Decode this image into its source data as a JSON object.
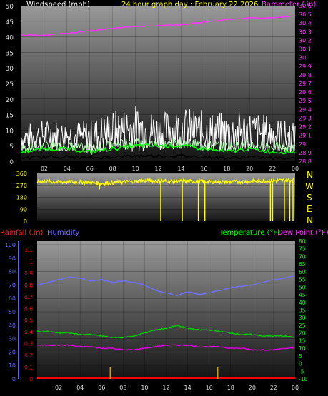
{
  "colors": {
    "bg": "#000000",
    "wind": "#ffffff",
    "gust_avg": "#00ff00",
    "wind_avg": "#000000",
    "light_green": "#b8ffb8",
    "pressure": "#ff33ff",
    "direction": "#ffff00",
    "humidity": "#7070ff",
    "temperature": "#00cc00",
    "dewpoint": "#dd00dd",
    "rainfall": "#ff0000",
    "rain_ticks": "#ff0000",
    "hum_ticks": "#6060ff",
    "temp_ticks": "#00ff00",
    "pressure_ticks": "#ff33ff",
    "dir_ticks": "#ffff00",
    "rain_marks": "#c8a000",
    "x_ticks": "#d8d8d8"
  },
  "header": {
    "wind_title": "Windspeed (mph)",
    "graph_title": "24 hour graph day : February 22 2026",
    "baro_title": "Barometer (.in)"
  },
  "compass": [
    "N",
    "W",
    "S",
    "E",
    "N"
  ],
  "bottom_labels": {
    "rainfall": "Rainfall (.in)",
    "humidity": "Humidity",
    "temperature": "Temperature (°F)",
    "dewpoint": "Dew Point (°F)"
  },
  "chart_data": [
    {
      "type": "line",
      "title": "24 hour graph day : February 22 2026",
      "ylabel": "Windspeed (mph)",
      "y2label": "Barometer (.in)",
      "x_ticks": [
        "02",
        "04",
        "06",
        "08",
        "10",
        "12",
        "14",
        "16",
        "18",
        "20",
        "22",
        "00"
      ],
      "ylim": [
        0,
        50
      ],
      "yticks": [
        "0",
        "5",
        "10",
        "15",
        "20",
        "25",
        "30",
        "35",
        "40",
        "45",
        "50"
      ],
      "y2lim": [
        28.8,
        30.6
      ],
      "y2ticks": [
        "28.8",
        "28.9",
        "29",
        "29.1",
        "29.2",
        "29.3",
        "29.4",
        "29.5",
        "29.6",
        "29.7",
        "29.8",
        "29.9",
        "30",
        "30.1",
        "30.2",
        "30.3",
        "30.4",
        "30.5",
        "30.6"
      ],
      "series": [
        {
          "name": "Windspeed",
          "x": [
            0,
            2,
            4,
            6,
            8,
            10,
            12,
            14,
            16,
            18,
            20,
            22,
            24
          ],
          "y": [
            7,
            8,
            8,
            7,
            9,
            10,
            9,
            10,
            9,
            8,
            9,
            8,
            7
          ],
          "peak": [
            12,
            14,
            13,
            14,
            17,
            19,
            16,
            18,
            17,
            16,
            17,
            15,
            13
          ]
        },
        {
          "name": "Average windspeed",
          "x": [
            0,
            2,
            4,
            6,
            8,
            10,
            12,
            14,
            16,
            18,
            20,
            22,
            24
          ],
          "y": [
            3,
            4,
            4,
            3,
            4,
            5,
            5,
            5,
            4,
            3,
            4,
            3,
            3
          ]
        },
        {
          "name": "Barometer",
          "axis": "right",
          "x": [
            0,
            2,
            4,
            6,
            8,
            10,
            12,
            14,
            16,
            18,
            20,
            22,
            24
          ],
          "y": [
            30.26,
            30.26,
            30.28,
            30.31,
            30.34,
            30.36,
            30.37,
            30.38,
            30.41,
            30.44,
            30.46,
            30.46,
            30.48
          ]
        }
      ]
    },
    {
      "type": "line",
      "ylim": [
        0,
        360
      ],
      "yticks": [
        "0",
        "90",
        "180",
        "270",
        "360"
      ],
      "x_ticks": [
        "02",
        "04",
        "06",
        "08",
        "10",
        "12",
        "14",
        "16",
        "18",
        "20",
        "22",
        "00"
      ],
      "series": [
        {
          "name": "Wind direction",
          "x": [
            0,
            2,
            4,
            6,
            8,
            10,
            12,
            14,
            16,
            18,
            20,
            22,
            24
          ],
          "y": [
            300,
            295,
            296,
            285,
            295,
            305,
            302,
            300,
            298,
            296,
            300,
            305,
            310
          ],
          "dips": [
            [
              5.8,
              240
            ],
            [
              11.5,
              0
            ],
            [
              13.5,
              0
            ],
            [
              15.0,
              0
            ],
            [
              15.6,
              0
            ],
            [
              21.7,
              0
            ],
            [
              21.9,
              0
            ],
            [
              23.0,
              0
            ],
            [
              23.5,
              0
            ],
            [
              23.8,
              0
            ]
          ]
        }
      ]
    },
    {
      "type": "line",
      "x_ticks": [
        "02",
        "04",
        "06",
        "08",
        "10",
        "12",
        "14",
        "16",
        "18",
        "20",
        "22",
        "00"
      ],
      "ylim": [
        0,
        100
      ],
      "yticks": [
        "0",
        "10",
        "20",
        "30",
        "40",
        "50",
        "60",
        "70",
        "80",
        "90",
        "100"
      ],
      "rain_ylim": [
        0,
        1.1
      ],
      "rain_ticks": [
        "0",
        "0.1",
        "0.2",
        "0.3",
        "0.4",
        "0.5",
        "0.6",
        "0.7",
        "0.8",
        "0.9",
        "1",
        "1.1"
      ],
      "temp_ylim": [
        -10,
        80
      ],
      "temp_ticks": [
        "-10",
        "-5",
        "0",
        "5",
        "10",
        "15",
        "20",
        "25",
        "30",
        "35",
        "40",
        "45",
        "50",
        "55",
        "60",
        "65",
        "70",
        "75",
        "80"
      ],
      "series": [
        {
          "name": "Humidity",
          "axis": "humidity",
          "x": [
            0,
            1,
            2,
            3,
            4,
            5,
            6,
            7,
            8,
            9,
            10,
            11,
            12,
            13,
            14,
            15,
            16,
            17,
            18,
            19,
            20,
            21,
            22,
            23,
            24
          ],
          "y": [
            70,
            72,
            74,
            76,
            75,
            73,
            74,
            72,
            73,
            72,
            70,
            66,
            64,
            62,
            65,
            63,
            64,
            66,
            68,
            69,
            70,
            72,
            74,
            75,
            77
          ]
        },
        {
          "name": "Temperature (°F)",
          "axis": "temp",
          "x": [
            0,
            1,
            2,
            3,
            4,
            5,
            6,
            7,
            8,
            9,
            10,
            11,
            12,
            13,
            14,
            15,
            16,
            17,
            18,
            19,
            20,
            21,
            22,
            23,
            24
          ],
          "y": [
            21,
            21,
            20,
            20,
            19,
            19,
            18,
            17,
            17,
            18,
            20,
            22,
            23,
            25,
            23,
            22,
            22,
            21,
            20,
            19,
            19,
            18,
            18,
            18,
            17
          ]
        },
        {
          "name": "Dew Point (°F)",
          "axis": "temp",
          "x": [
            0,
            1,
            2,
            3,
            4,
            5,
            6,
            7,
            8,
            9,
            10,
            11,
            12,
            13,
            14,
            15,
            16,
            17,
            18,
            19,
            20,
            21,
            22,
            23,
            24
          ],
          "y": [
            12,
            12,
            12,
            12,
            11,
            11,
            10,
            10,
            9,
            9,
            10,
            11,
            12,
            12,
            12,
            11,
            11,
            11,
            10,
            10,
            9,
            9,
            9,
            10,
            10
          ]
        },
        {
          "name": "Rainfall (.in)",
          "axis": "rain",
          "x": [
            0,
            24
          ],
          "y": [
            0,
            0
          ],
          "spikes": [
            [
              6.8,
              0.05
            ],
            [
              16.8,
              0.05
            ]
          ]
        }
      ]
    }
  ]
}
